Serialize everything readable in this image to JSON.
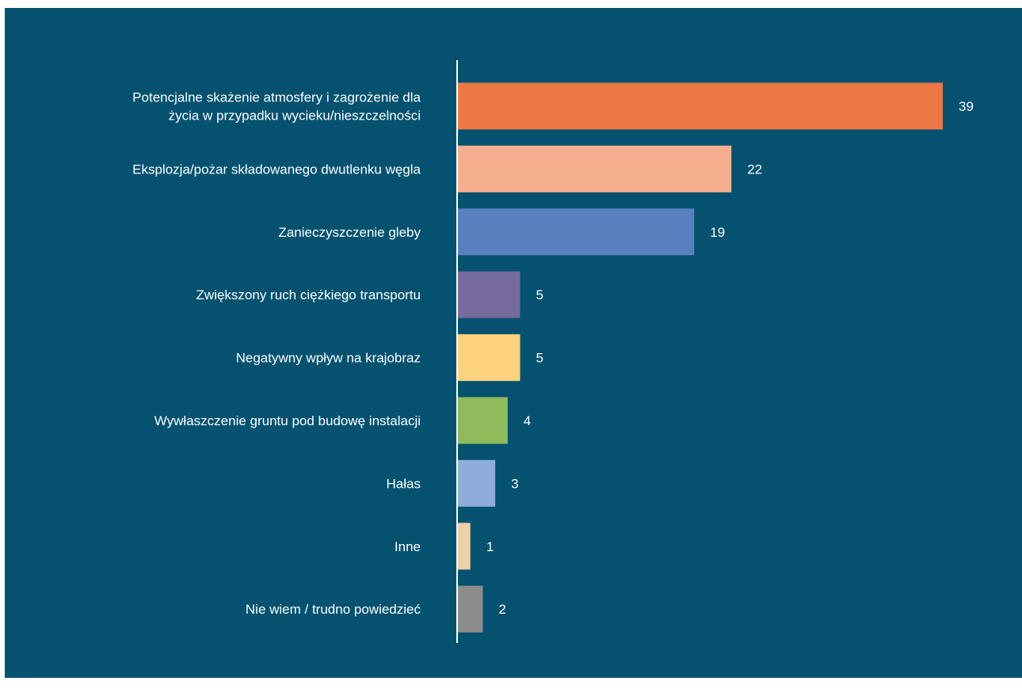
{
  "colors": {
    "background": "#045270",
    "axis": "#ffffff",
    "text": "#ffffff"
  },
  "chart_data": {
    "type": "bar",
    "orientation": "horizontal",
    "title": "",
    "xlabel": "",
    "ylabel": "",
    "xlim": [
      0,
      39
    ],
    "grid": false,
    "legend": "none",
    "categories": [
      [
        "Potencjalne skażenie atmosfery i zagrożenie dla",
        "życia w przypadku wycieku/nieszczelności"
      ],
      [
        "Eksplozja/pożar składowanego dwutlenku węgla"
      ],
      [
        "Zanieczyszczenie gleby"
      ],
      [
        "Zwiększony ruch ciężkiego transportu"
      ],
      [
        "Negatywny wpływ na krajobraz"
      ],
      [
        "Wywłaszczenie gruntu pod budowę instalacji"
      ],
      [
        "Hałas"
      ],
      [
        "Inne"
      ],
      [
        "Nie wiem / trudno powiedzieć"
      ]
    ],
    "values": [
      39,
      22,
      19,
      5,
      5,
      4,
      3,
      1,
      2
    ],
    "bar_colors": [
      "#ED7846",
      "#F6AF8E",
      "#5A80C0",
      "#776A9C",
      "#FCD27C",
      "#91BA5C",
      "#8EADDB",
      "#EDD0A8",
      "#8C8C8C"
    ]
  }
}
